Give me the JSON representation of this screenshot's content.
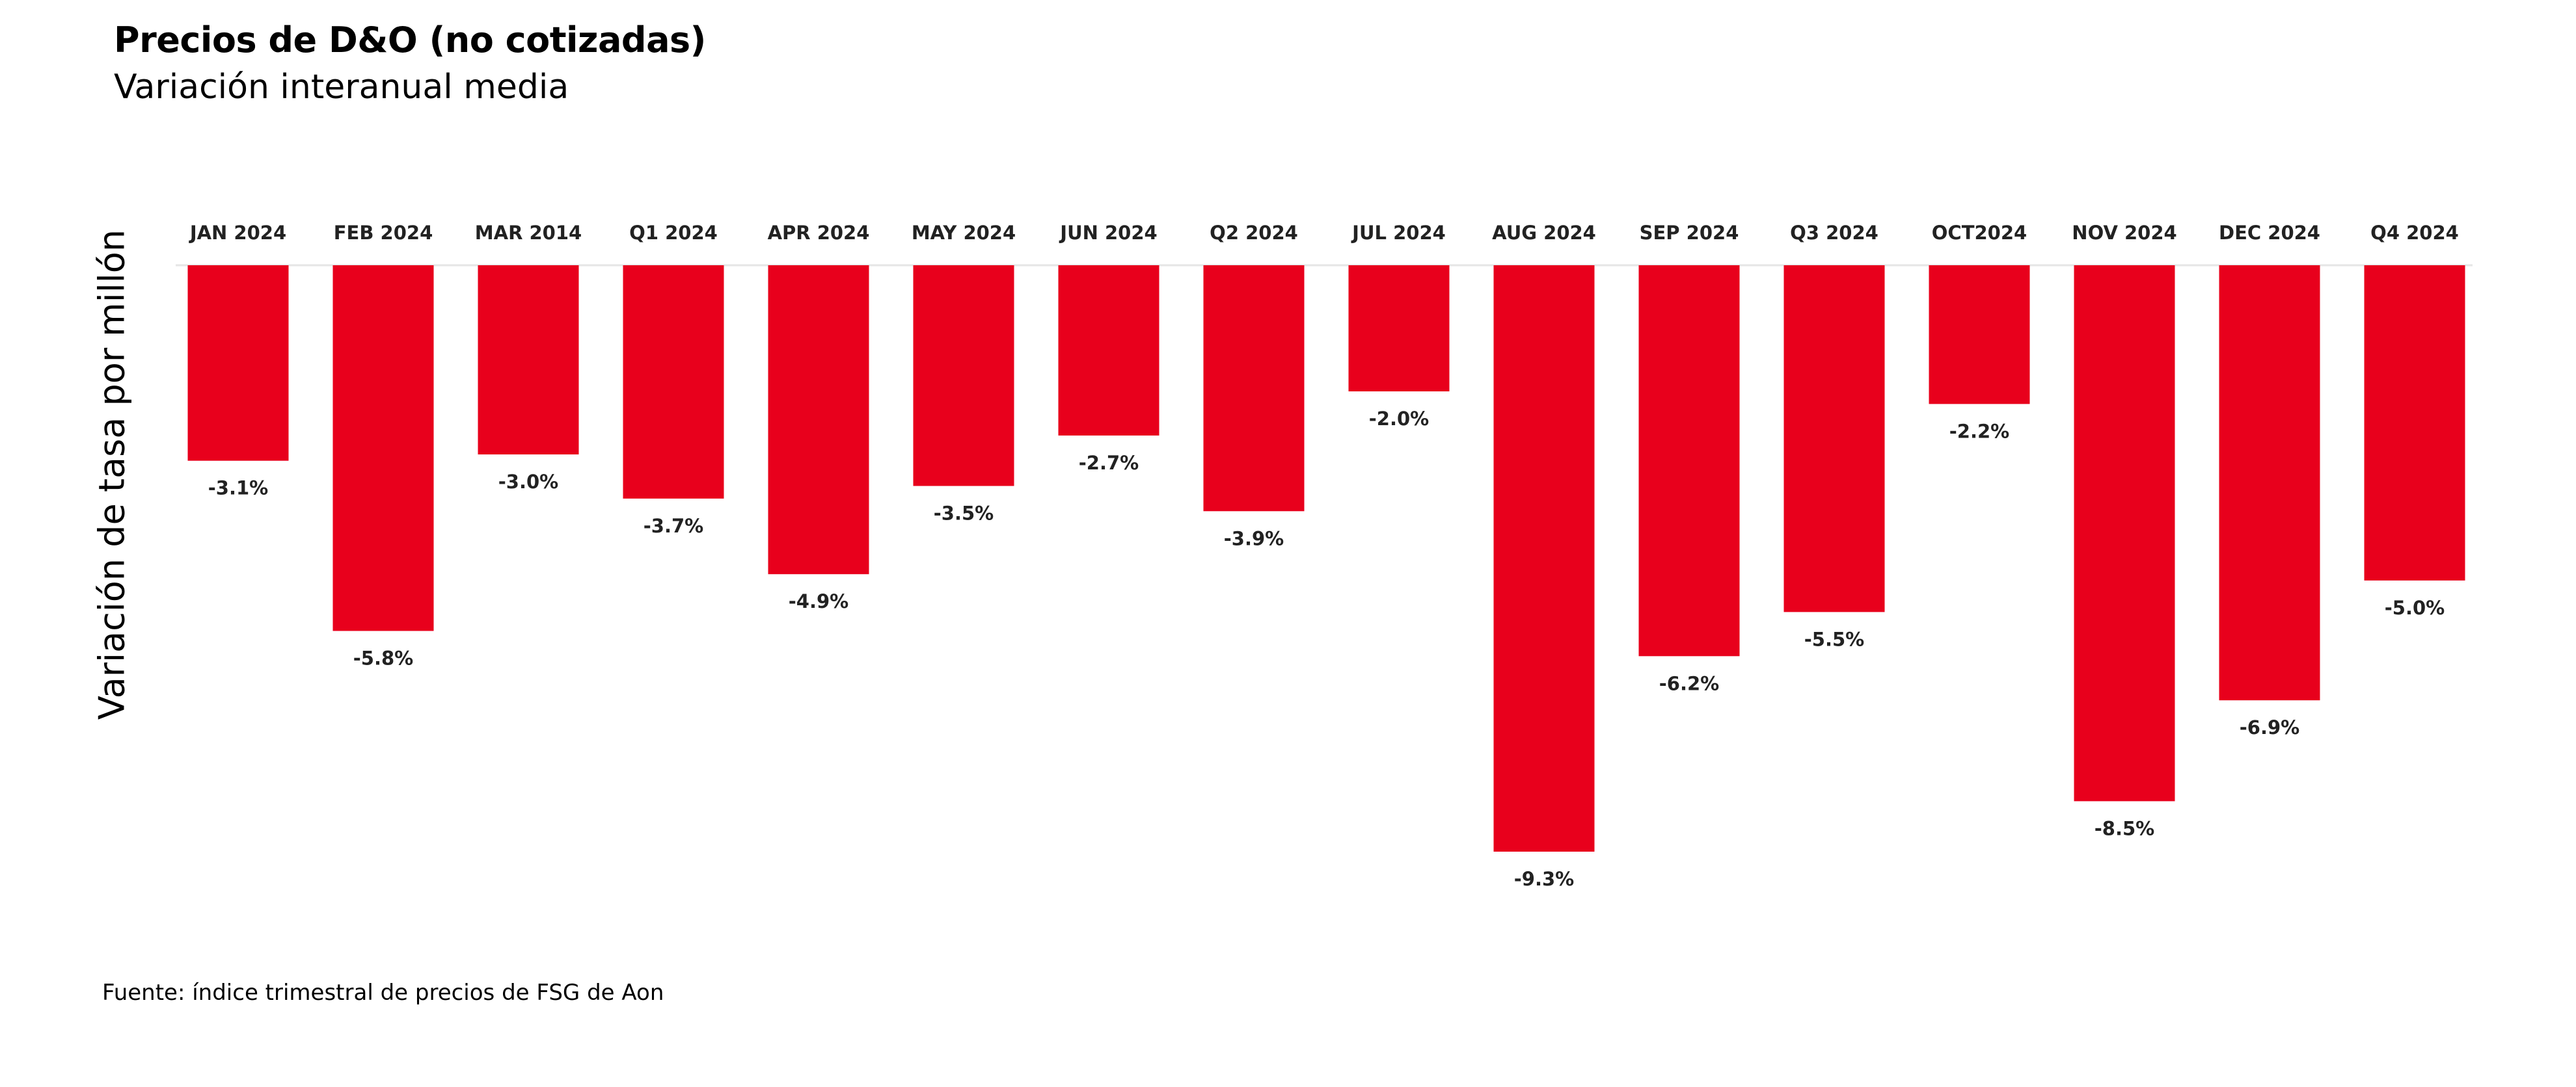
{
  "title": "Precios de D&O (no cotizadas)",
  "subtitle": "Variación interanual media",
  "source": "Fuente: índice trimestral de precios de FSG de Aon",
  "chart_data": {
    "type": "bar",
    "title": "Precios de D&O (no cotizadas)",
    "subtitle": "Variación interanual media",
    "xlabel": "",
    "ylabel": "Variación de tasa por millón",
    "categories": [
      "JAN 2024",
      "FEB 2024",
      "MAR 2014",
      "Q1 2024",
      "APR 2024",
      "MAY 2024",
      "JUN 2024",
      "Q2 2024",
      "JUL 2024",
      "AUG 2024",
      "SEP 2024",
      "Q3 2024",
      "OCT2024",
      "NOV 2024",
      "DEC 2024",
      "Q4 2024"
    ],
    "values": [
      -3.1,
      -5.8,
      -3.0,
      -3.7,
      -4.9,
      -3.5,
      -2.7,
      -3.9,
      -2.0,
      -9.3,
      -6.2,
      -5.5,
      -2.2,
      -8.5,
      -6.9,
      -5.0
    ],
    "data_labels": [
      "-3.1%",
      "-5.8%",
      "-3.0%",
      "-3.7%",
      "-4.9%",
      "-3.5%",
      "-2.7%",
      "-3.9%",
      "-2.0%",
      "-9.3%",
      "-6.2%",
      "-5.5%",
      "-2.2%",
      "-8.5%",
      "-6.9%",
      "-5.0%"
    ],
    "ylim": [
      -9.3,
      0
    ],
    "category_axis": "top",
    "grid": false,
    "legend": "none",
    "bar_color": "#E8001C",
    "axis_line_color": "#E6E6E6"
  }
}
